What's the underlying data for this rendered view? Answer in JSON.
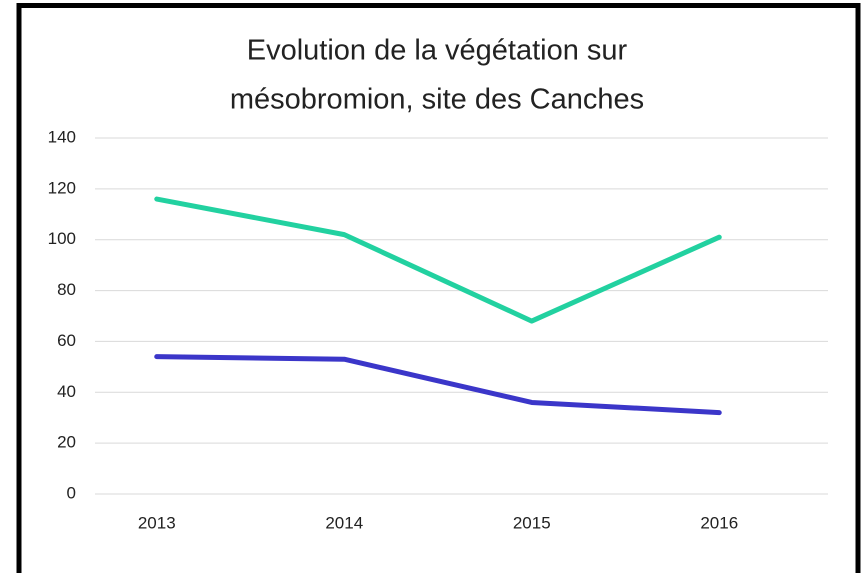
{
  "chart_data": {
    "type": "line",
    "title": [
      "Evolution de la végétation sur",
      "mésobromion, site des Canches"
    ],
    "categories": [
      "2013",
      "2014",
      "2015",
      "2016"
    ],
    "series": [
      {
        "color": "#22d1a0",
        "values": [
          116,
          102,
          68,
          101
        ]
      },
      {
        "color": "#3b36c9",
        "values": [
          54,
          53,
          36,
          32
        ]
      }
    ],
    "ylim": [
      0,
      140
    ],
    "yticks": [
      0,
      20,
      40,
      60,
      80,
      100,
      120,
      140
    ],
    "grid": true
  }
}
